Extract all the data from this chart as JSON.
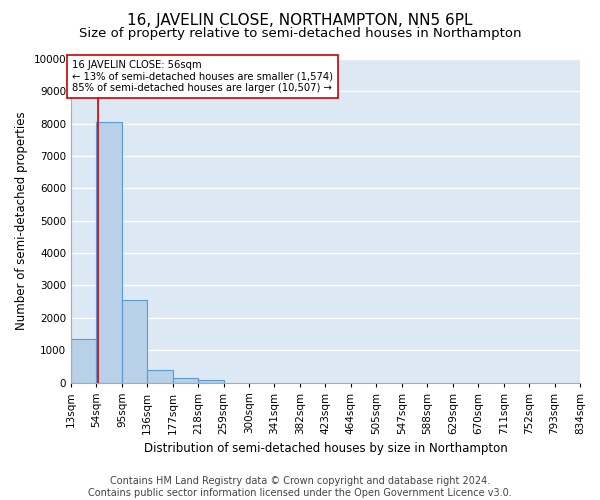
{
  "title": "16, JAVELIN CLOSE, NORTHAMPTON, NN5 6PL",
  "subtitle": "Size of property relative to semi-detached houses in Northampton",
  "xlabel": "Distribution of semi-detached houses by size in Northampton",
  "ylabel": "Number of semi-detached properties",
  "footer_line1": "Contains HM Land Registry data © Crown copyright and database right 2024.",
  "footer_line2": "Contains public sector information licensed under the Open Government Licence v3.0.",
  "bar_edges": [
    13,
    54,
    95,
    136,
    177,
    218,
    259,
    300,
    341,
    382,
    423,
    464,
    505,
    547,
    588,
    629,
    670,
    711,
    752,
    793,
    834
  ],
  "bar_heights": [
    1340,
    8050,
    2550,
    380,
    140,
    90,
    0,
    0,
    0,
    0,
    0,
    0,
    0,
    0,
    0,
    0,
    0,
    0,
    0,
    0
  ],
  "bar_color": "#b8d0e8",
  "bar_edge_color": "#5b9bd5",
  "property_size": 56,
  "property_line_color": "#cc0000",
  "annotation_text": "16 JAVELIN CLOSE: 56sqm\n← 13% of semi-detached houses are smaller (1,574)\n85% of semi-detached houses are larger (10,507) →",
  "annotation_box_color": "#ffffff",
  "annotation_box_edge_color": "#cc0000",
  "ylim": [
    0,
    10000
  ],
  "yticks": [
    0,
    1000,
    2000,
    3000,
    4000,
    5000,
    6000,
    7000,
    8000,
    9000,
    10000
  ],
  "plot_bg_color": "#dde8f5",
  "fig_bg_color": "#ffffff",
  "grid_color": "#ffffff",
  "title_fontsize": 11,
  "subtitle_fontsize": 9.5,
  "axis_label_fontsize": 8.5,
  "tick_fontsize": 7.5,
  "footer_fontsize": 7
}
